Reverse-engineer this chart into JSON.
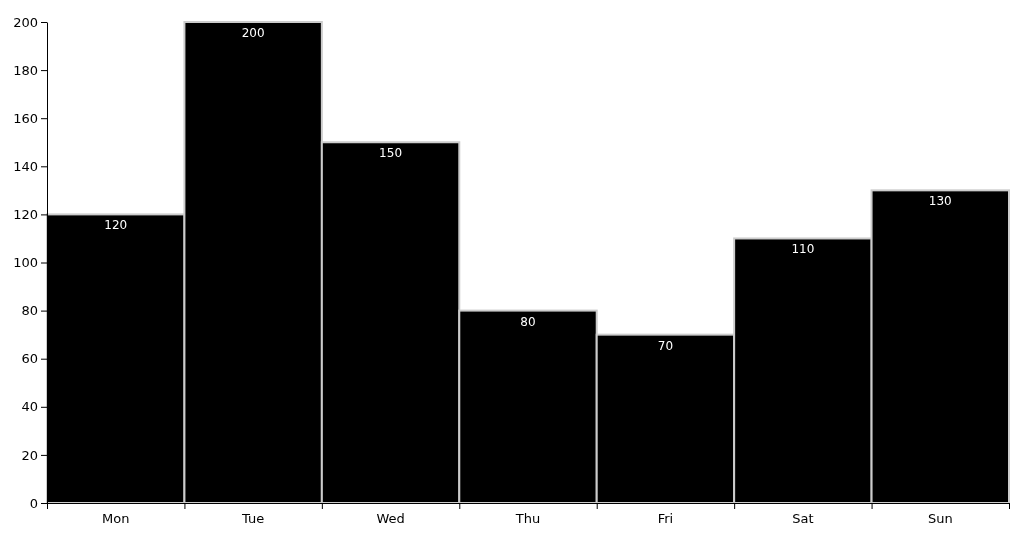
{
  "chart_data": {
    "type": "bar",
    "categories": [
      "Mon",
      "Tue",
      "Wed",
      "Thu",
      "Fri",
      "Sat",
      "Sun"
    ],
    "values": [
      120,
      200,
      150,
      80,
      70,
      110,
      130
    ],
    "color": "#000000",
    "ylim": [
      0,
      200
    ],
    "yticks": [
      0,
      20,
      40,
      60,
      80,
      100,
      120,
      140,
      160,
      180,
      200
    ],
    "data_labels": true
  }
}
